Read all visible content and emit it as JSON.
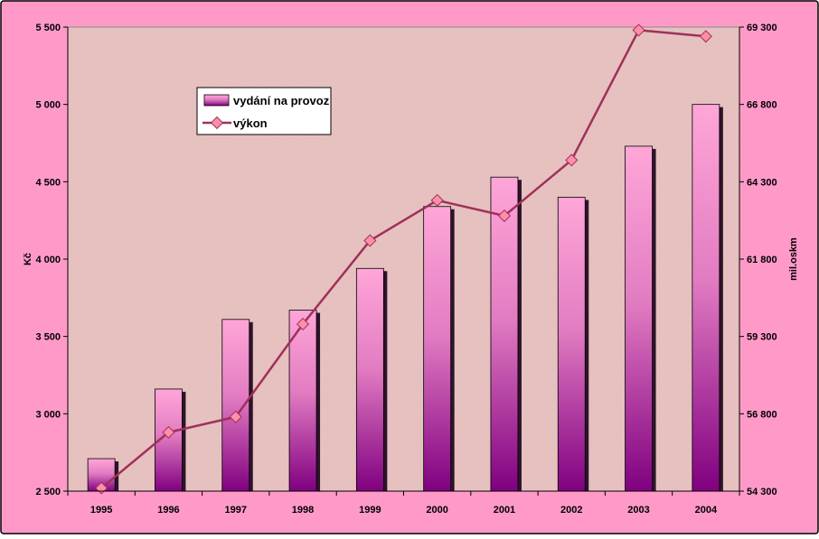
{
  "chart_data": {
    "type": "bar+line",
    "categories": [
      "1995",
      "1996",
      "1997",
      "1998",
      "1999",
      "2000",
      "2001",
      "2002",
      "2003",
      "2004"
    ],
    "series": [
      {
        "name": "vydání na provoz",
        "type": "bar",
        "axis": "left",
        "values": [
          2710,
          3160,
          3610,
          3670,
          3940,
          4340,
          4530,
          4400,
          4730,
          5000
        ]
      },
      {
        "name": "výkon",
        "type": "line",
        "axis": "right",
        "values": [
          54400,
          56200,
          56700,
          59700,
          62400,
          63700,
          63200,
          65000,
          69200,
          69000
        ]
      }
    ],
    "y_left": {
      "label": "Kč",
      "range": [
        2500,
        5500
      ],
      "ticks": [
        2500,
        3000,
        3500,
        4000,
        4500,
        5000,
        5500
      ],
      "tick_labels": [
        "2 500",
        "3 000",
        "3 500",
        "4 000",
        "4 500",
        "5 000",
        "5 500"
      ]
    },
    "y_right": {
      "label": "mil.oskm",
      "range": [
        54300,
        69300
      ],
      "ticks": [
        54300,
        56800,
        59300,
        61800,
        64300,
        66800,
        69300
      ],
      "tick_labels": [
        "54 300",
        "56 800",
        "59 300",
        "61 800",
        "64 300",
        "66 800",
        "69 300"
      ]
    },
    "legend_position": "top-left",
    "grid": false,
    "colors": {
      "frame_background": "#ff9ac8",
      "plot_background": "#e9c4c2",
      "bar_top": "#ffa6d8",
      "bar_bottom": "#800080",
      "line": "#a0305a",
      "marker": "#ff8fa8"
    }
  }
}
